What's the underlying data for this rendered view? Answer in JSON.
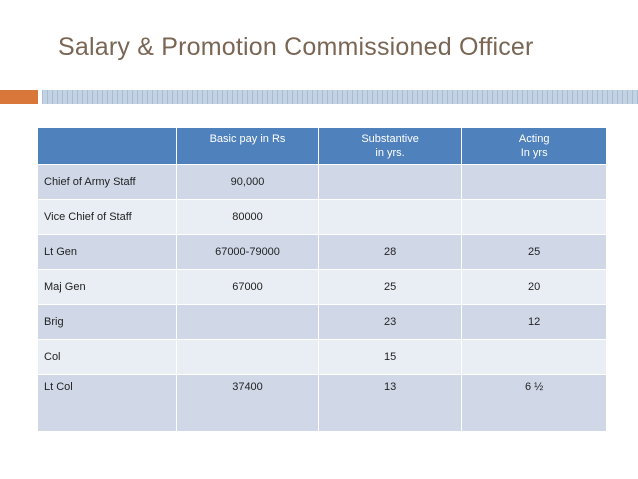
{
  "slide": {
    "title": "Salary & Promotion Commissioned  Officer"
  },
  "table": {
    "headers": [
      {
        "line1": "",
        "line2": ""
      },
      {
        "line1": "Basic pay in Rs",
        "line2": ""
      },
      {
        "line1": "Substantive",
        "line2": "in yrs."
      },
      {
        "line1": "Acting",
        "line2": "In yrs"
      }
    ],
    "rows": [
      {
        "rank": "Chief of Army Staff",
        "pay": "90,000",
        "substantive": "",
        "acting": ""
      },
      {
        "rank": "Vice Chief of Staff",
        "pay": "80000",
        "substantive": "",
        "acting": ""
      },
      {
        "rank": "Lt Gen",
        "pay": "67000-79000",
        "substantive": "28",
        "acting": "25"
      },
      {
        "rank": "Maj Gen",
        "pay": "67000",
        "substantive": "25",
        "acting": "20"
      },
      {
        "rank": "Brig",
        "pay": "",
        "substantive": "23",
        "acting": "12"
      },
      {
        "rank": "Col",
        "pay": "",
        "substantive": "15",
        "acting": ""
      },
      {
        "rank": "Lt Col",
        "pay": "37400",
        "substantive": "13",
        "acting": "6 ½"
      }
    ]
  },
  "colors": {
    "title": "#7a6654",
    "accent_orange": "#d9773a",
    "header_blue": "#4f81bd",
    "row_dark": "#d0d8e8",
    "row_light": "#e9edf4"
  }
}
